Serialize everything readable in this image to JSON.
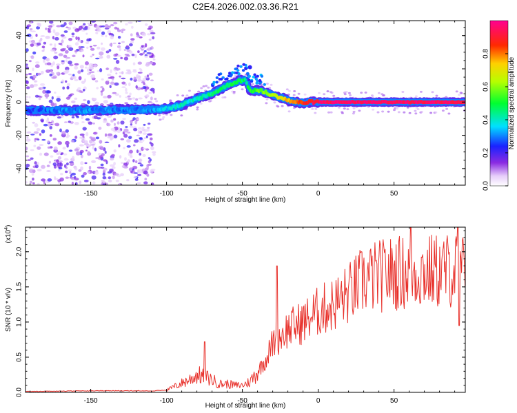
{
  "chart_data": [
    {
      "type": "heatmap",
      "title": "C2E4.2026.002.03.36.R21",
      "xlabel": "Height of straight line (km)",
      "ylabel": "Frequency (Hz)",
      "xlim": [
        -193,
        97
      ],
      "ylim": [
        -50,
        49
      ],
      "xticks": [
        -150,
        -100,
        -50,
        0,
        50
      ],
      "yticks": [
        -40,
        -20,
        0,
        20,
        40
      ],
      "xticklabels": [
        "-150",
        "-100",
        "-50",
        "0",
        "50"
      ],
      "yticklabels": [
        "-40",
        "-20",
        "0",
        "20",
        "40"
      ],
      "colorbar": {
        "label": "Normalized spectral amplitude",
        "range": [
          0.0,
          1.0
        ],
        "ticks": [
          0.0,
          0.2,
          0.4,
          0.6,
          0.8
        ],
        "ticklabels": [
          "0.0",
          "0.2",
          "0.4",
          "0.6",
          "0.8"
        ],
        "colormap": "rainbow (violet-blue-cyan-green-yellow-red-magenta)"
      },
      "ridge": {
        "description": "frequency trace of the signal vs. height",
        "x": [
          -193,
          -170,
          -150,
          -130,
          -110,
          -100,
          -90,
          -80,
          -70,
          -60,
          -52,
          -48,
          -45,
          -40,
          -35,
          -30,
          -25,
          -20,
          -15,
          -10,
          -5,
          0,
          5,
          10,
          20,
          40,
          60,
          80,
          97
        ],
        "y": [
          -5,
          -5,
          -5,
          -4.5,
          -4.5,
          -4,
          -2,
          2,
          5,
          10,
          13,
          13,
          7,
          7,
          6,
          4,
          3,
          1,
          0,
          -0.5,
          0,
          0,
          0,
          0,
          0,
          0,
          0,
          0,
          0
        ],
        "amplitude": [
          0.25,
          0.3,
          0.3,
          0.3,
          0.3,
          0.35,
          0.4,
          0.4,
          0.45,
          0.45,
          0.5,
          0.45,
          0.5,
          0.55,
          0.6,
          0.65,
          0.7,
          0.75,
          0.8,
          0.85,
          0.9,
          0.95,
          0.95,
          0.95,
          0.95,
          0.95,
          0.95,
          0.95,
          0.95
        ]
      },
      "noise_region_x": [
        -193,
        -108
      ]
    },
    {
      "type": "line",
      "xlabel": "Height of straight line (km)",
      "ylabel": "SNR (10 * v/v)",
      "y_multiplier": "(x10^4)",
      "y_multiplier_base": "(x10",
      "y_multiplier_exp": "4",
      "y_multiplier_close": ")",
      "xlim": [
        -193,
        97
      ],
      "ylim": [
        0.0,
        2.35
      ],
      "xticks": [
        -150,
        -100,
        -50,
        0,
        50
      ],
      "yticks": [
        0.0,
        0.5,
        1.0,
        1.5,
        2.0
      ],
      "xticklabels": [
        "-150",
        "-100",
        "-50",
        "0",
        "50"
      ],
      "yticklabels": [
        "0.0",
        "0.5",
        "1.0",
        "1.5",
        "2.0"
      ],
      "color": "#e8302a",
      "series": [
        {
          "name": "SNR",
          "trend_x": [
            -193,
            -150,
            -110,
            -100,
            -95,
            -85,
            -80,
            -75,
            -70,
            -65,
            -60,
            -55,
            -50,
            -45,
            -40,
            -35,
            -30,
            -25,
            -20,
            -10,
            0,
            10,
            20,
            30,
            40,
            50,
            60,
            70,
            80,
            90,
            97
          ],
          "trend_y": [
            0.01,
            0.02,
            0.02,
            0.03,
            0.08,
            0.18,
            0.25,
            0.22,
            0.18,
            0.12,
            0.12,
            0.1,
            0.1,
            0.15,
            0.3,
            0.45,
            0.7,
            0.8,
            0.9,
            1.0,
            1.15,
            1.25,
            1.4,
            1.6,
            1.65,
            1.7,
            1.7,
            1.72,
            1.72,
            1.75,
            1.7
          ],
          "spikes": [
            {
              "x": -75,
              "y": 0.72
            },
            {
              "x": -27,
              "y": 1.8
            },
            {
              "x": 61,
              "y": 2.35
            },
            {
              "x": 92,
              "y": 2.35
            },
            {
              "x": 93,
              "y": 0.95
            }
          ]
        }
      ]
    }
  ]
}
